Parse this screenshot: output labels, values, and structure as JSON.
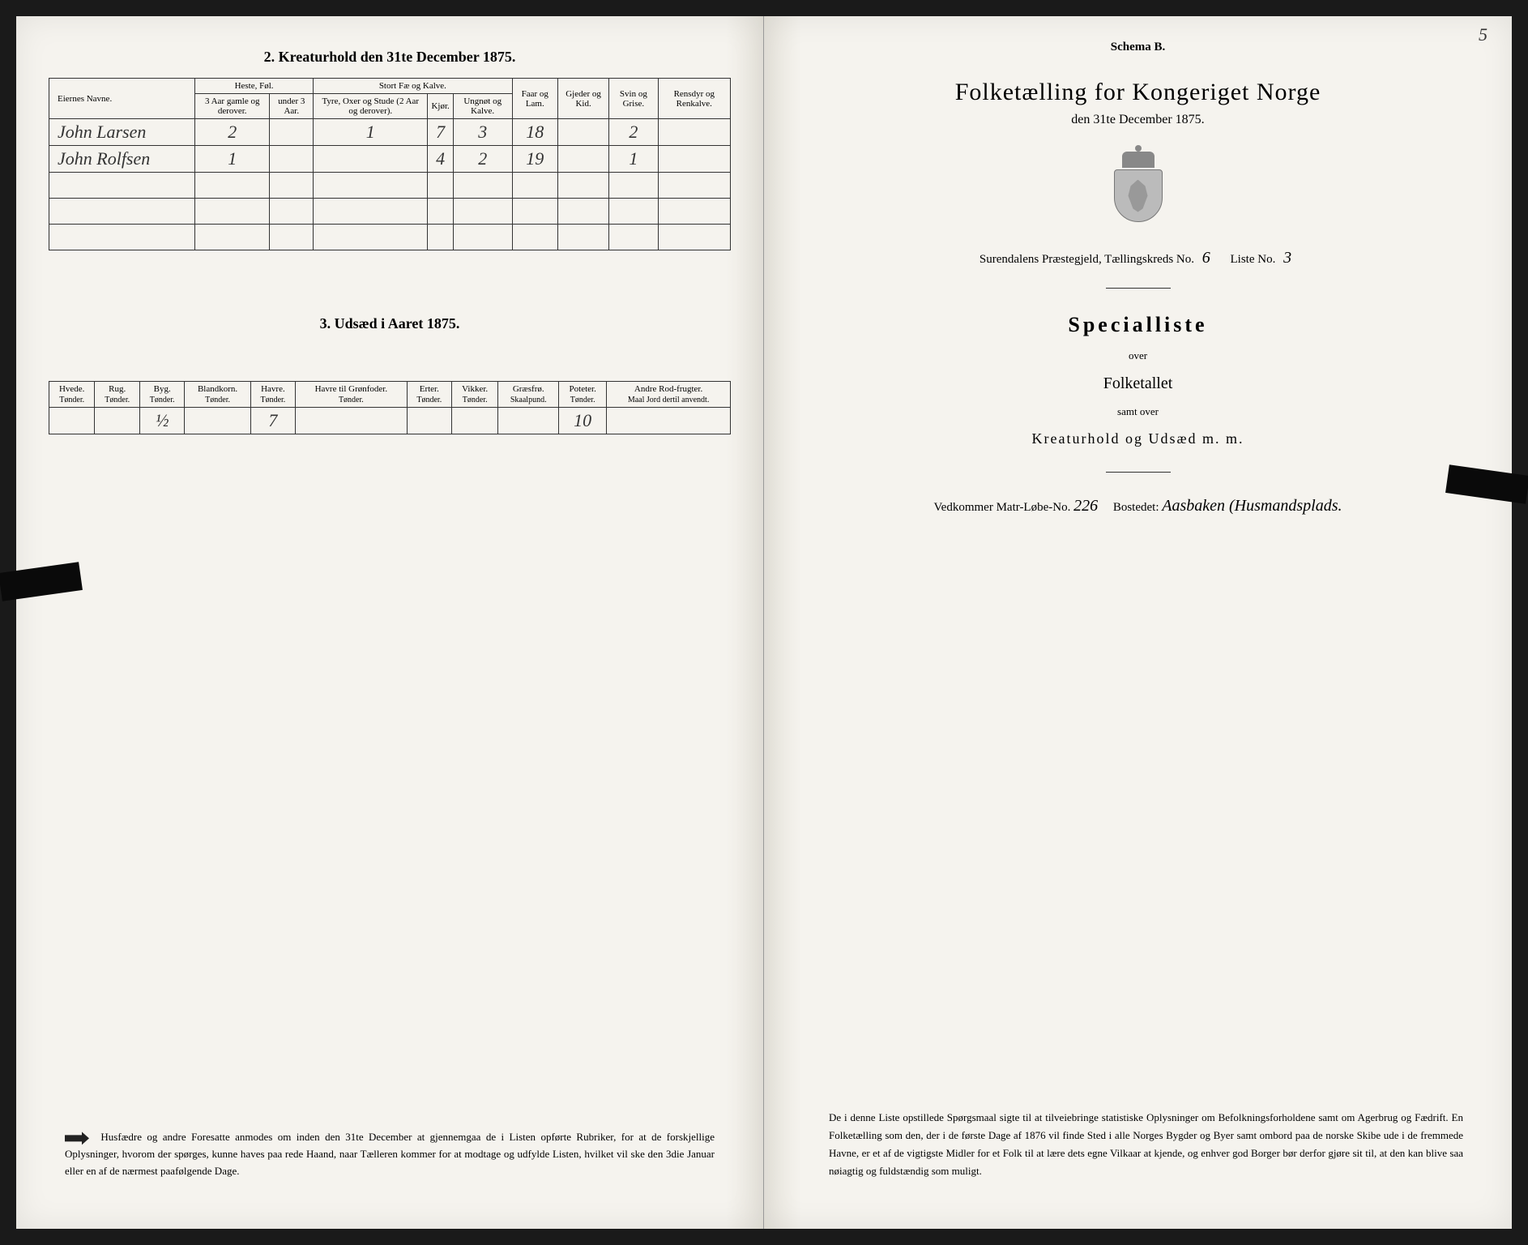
{
  "page_number": "5",
  "left": {
    "section2_title": "2. Kreaturhold den 31te December 1875.",
    "table2": {
      "type": "table",
      "header_groups": [
        {
          "label": "Eiernes Navne.",
          "colspan": 1,
          "rowspan": 2
        },
        {
          "label": "Heste, Føl.",
          "colspan": 2
        },
        {
          "label": "Stort Fæ og Kalve.",
          "colspan": 3
        },
        {
          "label": "Faar og Lam.",
          "colspan": 1,
          "rowspan": 2
        },
        {
          "label": "Gjeder og Kid.",
          "colspan": 1,
          "rowspan": 2
        },
        {
          "label": "Svin og Grise.",
          "colspan": 1,
          "rowspan": 2
        },
        {
          "label": "Rensdyr og Renkalve.",
          "colspan": 1,
          "rowspan": 2
        }
      ],
      "sub_headers": [
        "3 Aar gamle og derover.",
        "under 3 Aar.",
        "Tyre, Oxer og Stude (2 Aar og derover).",
        "Kjør.",
        "Ungnøt og Kalve."
      ],
      "rows": [
        {
          "owner": "John Larsen",
          "cells": [
            "2",
            "",
            "1",
            "7",
            "3",
            "18",
            "",
            "2",
            ""
          ]
        },
        {
          "owner": "John Rolfsen",
          "cells": [
            "1",
            "",
            "",
            "4",
            "2",
            "19",
            "",
            "1",
            ""
          ]
        }
      ],
      "empty_rows": 3,
      "border_color": "#333",
      "background": "#f5f3ee",
      "header_fontsize": 11,
      "cell_fontsize": 12,
      "handwritten_fontsize": 22
    },
    "section3_title": "3. Udsæd i Aaret 1875.",
    "table3": {
      "type": "table",
      "columns": [
        {
          "label": "Hvede.",
          "sub": "Tønder."
        },
        {
          "label": "Rug.",
          "sub": "Tønder."
        },
        {
          "label": "Byg.",
          "sub": "Tønder."
        },
        {
          "label": "Blandkorn.",
          "sub": "Tønder."
        },
        {
          "label": "Havre.",
          "sub": "Tønder."
        },
        {
          "label": "Havre til Grønfoder.",
          "sub": "Tønder."
        },
        {
          "label": "Erter.",
          "sub": "Tønder."
        },
        {
          "label": "Vikker.",
          "sub": "Tønder."
        },
        {
          "label": "Græsfrø.",
          "sub": "Skaalpund."
        },
        {
          "label": "Poteter.",
          "sub": "Tønder."
        },
        {
          "label": "Andre Rod-frugter.",
          "sub": "Maal Jord dertil anvendt."
        }
      ],
      "row": [
        "",
        "",
        "½",
        "",
        "7",
        "",
        "",
        "",
        "",
        "10",
        ""
      ],
      "border_color": "#333"
    },
    "footnote": "Husfædre og andre Foresatte anmodes om inden den 31te December at gjennemgaa de i Listen opførte Rubriker, for at de forskjellige Oplysninger, hvorom der spørges, kunne haves paa rede Haand, naar Tælleren kommer for at modtage og udfylde Listen, hvilket vil ske den 3die Januar eller en af de nærmest paafølgende Dage."
  },
  "right": {
    "schema": "Schema B.",
    "main_title": "Folketælling for Kongeriget Norge",
    "subtitle": "den 31te December 1875.",
    "district_prefix": "Surendalens Præstegjeld, Tællingskreds No.",
    "district_no": "6",
    "liste_label": "Liste No.",
    "liste_no": "3",
    "special_title": "Specialliste",
    "over": "over",
    "folketallet": "Folketallet",
    "samt_over": "samt over",
    "kreatur": "Kreaturhold og Udsæd m. m.",
    "matr_label": "Vedkommer Matr-Løbe-No.",
    "matr_no": "226",
    "bosted_label": "Bostedet:",
    "bosted_value": "Aasbaken (Husmandsplads.",
    "footnote": "De i denne Liste opstillede Spørgsmaal sigte til at tilveiebringe statistiske Oplysninger om Befolkningsforholdene samt om Agerbrug og Fædrift. En Folketælling som den, der i de første Dage af 1876 vil finde Sted i alle Norges Bygder og Byer samt ombord paa de norske Skibe ude i de fremmede Havne, er et af de vigtigste Midler for et Folk til at lære dets egne Vilkaar at kjende, og enhver god Borger bør derfor gjøre sit til, at den kan blive saa nøiagtig og fuldstændig som muligt."
  },
  "colors": {
    "paper": "#f5f3ee",
    "ink": "#333333",
    "border": "#333333",
    "background": "#1a1a1a"
  }
}
